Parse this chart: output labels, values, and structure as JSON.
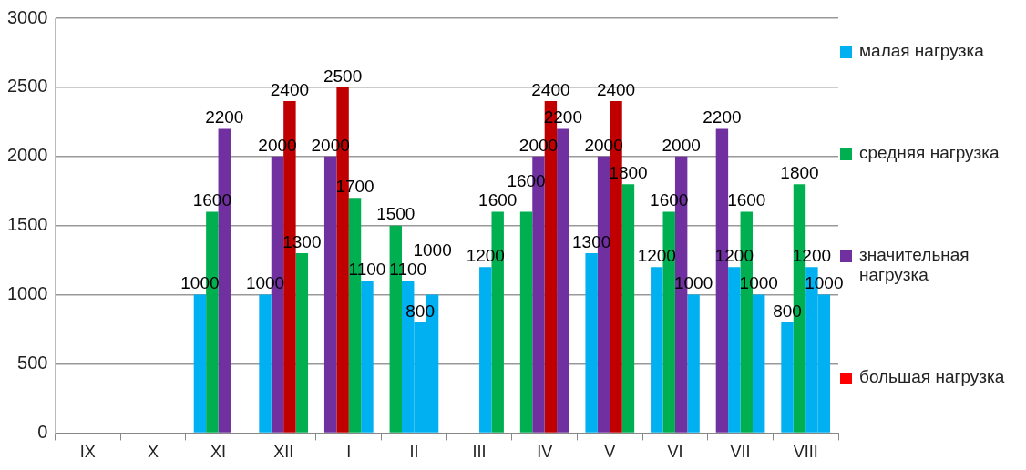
{
  "chart_data": {
    "type": "bar",
    "categories": [
      "IX",
      "X",
      "XI",
      "XII",
      "I",
      "II",
      "III",
      "IV",
      "V",
      "VI",
      "VII",
      "VIII"
    ],
    "series": [
      {
        "name": "малая нагрузка",
        "color": "#00b0f0",
        "values": [
          null,
          null,
          1000,
          1000,
          2000,
          1500,
          null,
          1600,
          1300,
          1200,
          2200,
          800
        ],
        "colors": [
          "#00b0f0",
          "#00b0f0",
          "#00b0f0",
          "#00b0f0",
          "#7030a0",
          "#00b050",
          "#00b0f0",
          "#00b050",
          "#00b0f0",
          "#00b0f0",
          "#7030a0",
          "#00b0f0"
        ]
      },
      {
        "name": "средняя нагрузка",
        "color": "#00b050",
        "values": [
          null,
          null,
          1600,
          2000,
          2500,
          1100,
          null,
          2000,
          2000,
          1600,
          1200,
          1800
        ],
        "colors": [
          "#00b050",
          "#00b050",
          "#00b050",
          "#7030a0",
          "#c00000",
          "#00b0f0",
          "#00b050",
          "#7030a0",
          "#7030a0",
          "#00b050",
          "#00b0f0",
          "#00b050"
        ]
      },
      {
        "name": "значительная нагрузка",
        "color": "#7030a0",
        "values": [
          null,
          null,
          2200,
          2400,
          1700,
          800,
          1200,
          2400,
          2400,
          2000,
          1600,
          1200
        ],
        "colors": [
          "#7030a0",
          "#7030a0",
          "#7030a0",
          "#c00000",
          "#00b050",
          "#00b0f0",
          "#00b0f0",
          "#c00000",
          "#c00000",
          "#7030a0",
          "#00b050",
          "#00b0f0"
        ]
      },
      {
        "name": "большая нагрузка",
        "color": "#ff0000",
        "values": [
          null,
          null,
          null,
          1300,
          1100,
          1000,
          1600,
          2200,
          1800,
          1000,
          1000,
          1000
        ],
        "colors": [
          "#c00000",
          "#c00000",
          "#c00000",
          "#00b050",
          "#00b0f0",
          "#00b0f0",
          "#00b050",
          "#7030a0",
          "#00b050",
          "#00b0f0",
          "#00b0f0",
          "#00b0f0"
        ]
      }
    ],
    "ylim": [
      0,
      3000
    ],
    "yticks": [
      0,
      500,
      1000,
      1500,
      2000,
      2500,
      3000
    ],
    "grid": "y",
    "legend": "right",
    "data_labels": true
  }
}
